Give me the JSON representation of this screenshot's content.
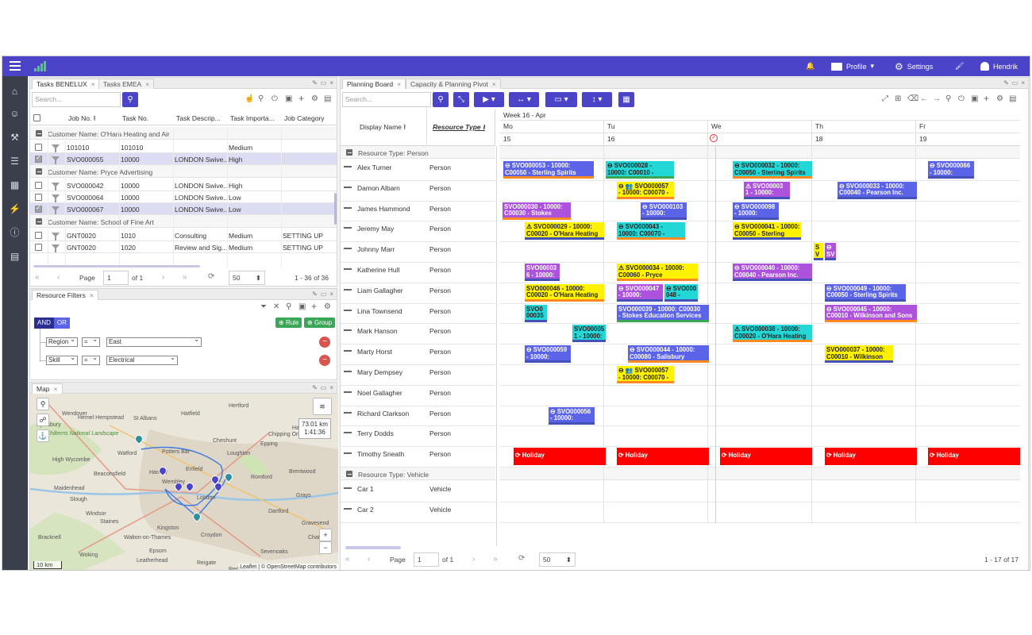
{
  "topbar": {
    "profile_label": "Profile",
    "settings_label": "Settings",
    "user_name": "Hendrik"
  },
  "tasks_panel": {
    "tabs": [
      "Tasks BENELUX",
      "Tasks EMEA"
    ],
    "search_placeholder": "Search...",
    "columns": [
      "Job No.",
      "Task No.",
      "Task Descrip...",
      "Task Importa...",
      "Job Category"
    ],
    "groups": [
      {
        "label": "Customer Name: O'Hara Heating and Air",
        "rows": [
          {
            "job": "101010",
            "task": "101010",
            "desc": "",
            "imp": "Medium",
            "cat": "",
            "checked": false
          },
          {
            "job": "SVO000055",
            "task": "10000",
            "desc": "LONDON Swive...",
            "imp": "High",
            "cat": "",
            "checked": true
          }
        ]
      },
      {
        "label": "Customer Name: Pryce Advertising",
        "rows": [
          {
            "job": "SVO000042",
            "task": "10000",
            "desc": "LONDON Swive...",
            "imp": "High",
            "cat": "",
            "checked": false
          },
          {
            "job": "SVO000064",
            "task": "10000",
            "desc": "LONDON Swive...",
            "imp": "Low",
            "cat": "",
            "checked": false
          },
          {
            "job": "SVO000067",
            "task": "10000",
            "desc": "LONDON Swive...",
            "imp": "Low",
            "cat": "",
            "checked": true
          }
        ]
      },
      {
        "label": "Customer Name: School of Fine Art",
        "rows": [
          {
            "job": "GNT0020",
            "task": "1010",
            "desc": "Consulting",
            "imp": "Medium",
            "cat": "SETTING UP",
            "checked": false
          },
          {
            "job": "GNT0020",
            "task": "1020",
            "desc": "Review and Sig...",
            "imp": "Medium",
            "cat": "SETTING UP",
            "checked": false
          }
        ]
      }
    ],
    "pager": {
      "page_label": "Page",
      "page": "1",
      "of": "of 1",
      "size": "50",
      "range": "1 - 36 of 36"
    }
  },
  "filters_panel": {
    "tab": "Resource Filters",
    "and_label": "AND",
    "or_label": "OR",
    "rule_label": "Rule",
    "group_label": "Group",
    "rules": [
      {
        "field": "Region",
        "op": "=",
        "value": "East"
      },
      {
        "field": "Skill",
        "op": "=",
        "value": "Electrical"
      }
    ]
  },
  "map_panel": {
    "tab": "Map",
    "distance": "73.01 km",
    "duration": "1:41:36",
    "scale": "10 km",
    "attribution": "Leaflet | © OpenStreetMap contributors",
    "place_labels": [
      "Wendover",
      "Hemel Hempstead",
      "St Albans",
      "Hatfield",
      "Hertford",
      "Harlow",
      "Aylesbury",
      "Chilterns National Landscape",
      "Potters Bar",
      "Cheshunt",
      "Epping",
      "Chipping Ongar",
      "High Wycombe",
      "Watford",
      "Enfield",
      "Loughton",
      "Brentwood",
      "Beaconsfield",
      "Harrow",
      "Romford",
      "Maidenhead",
      "Wembley",
      "Slough",
      "Windsor",
      "London",
      "Dartford",
      "Grays",
      "Staines",
      "Kingston",
      "Croydon",
      "Epsom",
      "Walton-on-Thames",
      "Woking",
      "Leatherhead",
      "Reigate",
      "Sevenoaks",
      "Gravesend",
      "Chatham",
      "Bracknell",
      "Redhill",
      "Guildford"
    ]
  },
  "planning": {
    "tabs": [
      "Planning Board",
      "Capacity & Planning Pivot"
    ],
    "search_placeholder": "Search...",
    "col_display_name": "Display Name",
    "col_resource_type": "Resource Type",
    "week_label": "Week 16 - Apr",
    "days": [
      {
        "name": "Mo",
        "date": "15"
      },
      {
        "name": "Tu",
        "date": "16"
      },
      {
        "name": "We",
        "date": ""
      },
      {
        "name": "Th",
        "date": "18"
      },
      {
        "name": "Fr",
        "date": "19"
      }
    ],
    "group_person": "Resource Type: Person",
    "group_vehicle": "Resource Type: Vehicle",
    "resources": [
      {
        "name": "Alex Turner",
        "type": "Person"
      },
      {
        "name": "Damon Albarn",
        "type": "Person"
      },
      {
        "name": "James Hammond",
        "type": "Person"
      },
      {
        "name": "Jeremy May",
        "type": "Person"
      },
      {
        "name": "Johnny Marr",
        "type": "Person"
      },
      {
        "name": "Katherine Hull",
        "type": "Person"
      },
      {
        "name": "Liam Gallagher",
        "type": "Person"
      },
      {
        "name": "Lina Townsend",
        "type": "Person"
      },
      {
        "name": "Mark Hanson",
        "type": "Person"
      },
      {
        "name": "Marty Horst",
        "type": "Person"
      },
      {
        "name": "Mary Dempsey",
        "type": "Person"
      },
      {
        "name": "Noel Gallagher",
        "type": "Person"
      },
      {
        "name": "Richard Clarkson",
        "type": "Person"
      },
      {
        "name": "Terry Dodds",
        "type": "Person"
      },
      {
        "name": "Timothy Sneath",
        "type": "Person"
      }
    ],
    "vehicles": [
      {
        "name": "Car 1",
        "type": "Vehicle"
      },
      {
        "name": "Car 2",
        "type": "Vehicle"
      }
    ],
    "tasks": [
      {
        "row": 0,
        "l1": "⊖ SVO000053 - 10000:",
        "l2": "C00050 - Sterling Spirits",
        "color": "blue",
        "border": "b-orange"
      },
      {
        "row": 0,
        "l1": "⊖ SVO000028 -",
        "l2": "10000: C00010 -",
        "color": "cyan",
        "border": "b-green"
      },
      {
        "row": 0,
        "l1": "⊖ SVO000032 - 10000:",
        "l2": "C00050 - Sterling Spirits",
        "color": "cyan",
        "border": "b-orange"
      },
      {
        "row": 0,
        "l1": "⊖ SVO000066",
        "l2": "- 10000:",
        "color": "blue",
        "border": "b-blue"
      },
      {
        "row": 1,
        "l1": "⊖ 👥 SVO000057",
        "l2": "- 10000: C00070 -",
        "color": "yellow",
        "border": "b-orange"
      },
      {
        "row": 1,
        "l1": "⚠ SVO00003",
        "l2": "1 - 10000:",
        "color": "purple",
        "border": "b-blue"
      },
      {
        "row": 1,
        "l1": "⊖ SVO000033 - 10000:",
        "l2": "C00040 - Pearson Inc.",
        "color": "blue",
        "border": "b-blue"
      },
      {
        "row": 2,
        "l1": "SVO000030 - 10000:",
        "l2": "C00030 - Stokes",
        "color": "purple",
        "border": "b-orange"
      },
      {
        "row": 2,
        "l1": "⊖ SVO000103",
        "l2": "- 10000:",
        "color": "blue",
        "border": "b-blue"
      },
      {
        "row": 2,
        "l1": "⊖ SVO000098",
        "l2": "- 10000:",
        "color": "blue",
        "border": "b-blue"
      },
      {
        "row": 3,
        "l1": "⚠ SVO000029 - 10000:",
        "l2": "C00020 - O'Hara Heating",
        "color": "yellow",
        "border": "b-blue"
      },
      {
        "row": 3,
        "l1": "⊖ SVO000043 -",
        "l2": "10000: C00070 -",
        "color": "cyan",
        "border": "b-orange"
      },
      {
        "row": 3,
        "l1": "⊖ SVO000041 - 10000:",
        "l2": "C00050 - Sterling",
        "color": "yellow",
        "border": "b-blue"
      },
      {
        "row": 4,
        "l1": "S",
        "l2": "V",
        "color": "yellow",
        "border": "b-blue"
      },
      {
        "row": 4,
        "l1": "⊖",
        "l2": "SV",
        "color": "purple",
        "border": "b-blue"
      },
      {
        "row": 5,
        "l1": "SVO00003",
        "l2": "6 - 10000:",
        "color": "purple",
        "border": "b-blue"
      },
      {
        "row": 5,
        "l1": "⚠ SVO000034 - 10000:",
        "l2": "C00060 - Pryce",
        "color": "yellow",
        "border": "b-orange"
      },
      {
        "row": 5,
        "l1": "⊖ SVO000040 - 10000:",
        "l2": "C00040 - Pearson Inc.",
        "color": "purple",
        "border": "b-blue"
      },
      {
        "row": 6,
        "l1": "SVO000046 - 10000:",
        "l2": "C00020 - O'Hara Heating",
        "color": "yellow",
        "border": "b-orange"
      },
      {
        "row": 6,
        "l1": "⊖ SVO000047",
        "l2": "- 10000:",
        "color": "purple",
        "border": "b-blue"
      },
      {
        "row": 6,
        "l1": "⊖ SVO000",
        "l2": "048 -",
        "color": "cyan",
        "border": "b-blue"
      },
      {
        "row": 6,
        "l1": "⊖ SVO000049 - 10000:",
        "l2": "C00050 - Sterling Spirits",
        "color": "blue",
        "border": "b-blue"
      },
      {
        "row": 7,
        "l1": "SVO0",
        "l2": "00035",
        "color": "cyan",
        "border": "b-blue"
      },
      {
        "row": 7,
        "l1": "SVO000039 - 10000: C00030",
        "l2": "- Stokes Education Services",
        "color": "blue",
        "border": "b-green"
      },
      {
        "row": 7,
        "l1": "⊖ SVO000045 - 10000:",
        "l2": "C00010 - Wilkinson and Sons",
        "color": "purple",
        "border": "b-orange"
      },
      {
        "row": 8,
        "l1": "SVO00005",
        "l2": "1 - 10000:",
        "color": "cyan",
        "border": "b-blue"
      },
      {
        "row": 8,
        "l1": "⚠ SVO000038 - 10000:",
        "l2": "C00020 - O'Hara Heating",
        "color": "cyan",
        "border": "b-orange"
      },
      {
        "row": 9,
        "l1": "⊖ SVO000059",
        "l2": "- 10000:",
        "color": "blue",
        "border": "b-blue"
      },
      {
        "row": 9,
        "l1": "⊖ SVO000044 - 10000:",
        "l2": "C00080 - Salisbury",
        "color": "blue",
        "border": "b-orange"
      },
      {
        "row": 9,
        "l1": "SVO000037 - 10000:",
        "l2": "C00010 - Wilkinson",
        "color": "yellow",
        "border": "b-blue"
      },
      {
        "row": 10,
        "l1": "⊖ 👥 SVO000057",
        "l2": "- 10000: C00070 -",
        "color": "yellow",
        "border": "b-orange"
      },
      {
        "row": 12,
        "l1": "⊖ SVO000056",
        "l2": "- 10000:",
        "color": "blue",
        "border": "b-blue"
      },
      {
        "row": 14,
        "l1": "⟳ Holiday",
        "l2": "",
        "color": "red",
        "border": ""
      },
      {
        "row": 14,
        "l1": "⟳ Holiday",
        "l2": "",
        "color": "red",
        "border": ""
      },
      {
        "row": 14,
        "l1": "⟳ Holiday",
        "l2": "",
        "color": "red",
        "border": ""
      },
      {
        "row": 14,
        "l1": "⟳ Holiday",
        "l2": "",
        "color": "red",
        "border": ""
      },
      {
        "row": 14,
        "l1": "⟳ Holiday",
        "l2": "",
        "color": "red",
        "border": ""
      }
    ],
    "pager": {
      "page_label": "Page",
      "page": "1",
      "of": "of 1",
      "size": "50",
      "range": "1 - 17 of 17"
    }
  }
}
